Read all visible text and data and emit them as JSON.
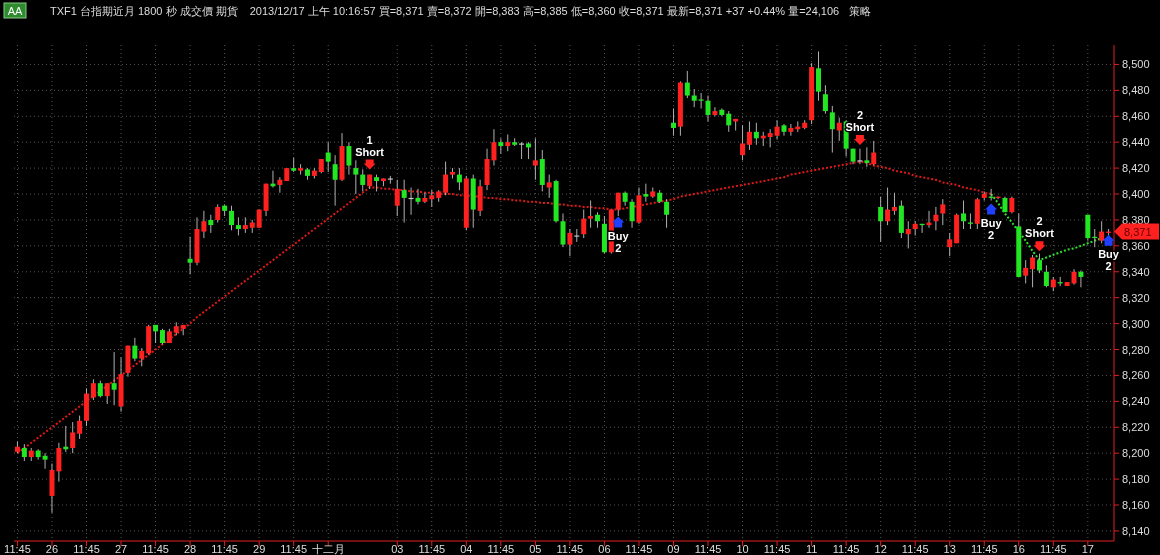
{
  "chart_data": {
    "type": "candlestick",
    "title": "TXF1  台指期近月  1800 秒  成交價  期貨",
    "subtitle": "2013/12/17  上午  10:16:57  買=8,371  賣=8,372  開=8,383  高=8,385  低=8,360  收=8,371  最新=8,371  +37  +0.44%  量=24,106",
    "categories": [
      "11:45",
      null,
      null,
      null,
      null,
      "26",
      null,
      null,
      null,
      null,
      "11:45",
      null,
      null,
      null,
      null,
      "27",
      null,
      null,
      null,
      null,
      "11:45",
      null,
      null,
      null,
      null,
      "28",
      null,
      null,
      null,
      null,
      "11:45",
      null,
      null,
      null,
      null,
      "29",
      null,
      null,
      null,
      null,
      "11:45",
      null,
      null,
      null,
      null,
      "十二月",
      null,
      null,
      null,
      null,
      null,
      null,
      null,
      null,
      null,
      "03",
      null,
      null,
      null,
      null,
      "11:45",
      null,
      null,
      null,
      null,
      "04",
      null,
      null,
      null,
      null,
      "11:45",
      null,
      null,
      null,
      null,
      "05",
      null,
      null,
      null,
      null,
      "11:45",
      null,
      null,
      null,
      null,
      "06",
      null,
      null,
      null,
      null,
      "11:45",
      null,
      null,
      null,
      null,
      "09",
      null,
      null,
      null,
      null,
      "11:45",
      null,
      null,
      null,
      null,
      "10",
      null,
      null,
      null,
      null,
      "11:45",
      null,
      null,
      null,
      null,
      "11",
      null,
      null,
      null,
      null,
      "11:45",
      null,
      null,
      null,
      null,
      "12",
      null,
      null,
      null,
      null,
      "11:45",
      null,
      null,
      null,
      null,
      "13",
      null,
      null,
      null,
      null,
      "11:45",
      null,
      null,
      null,
      null,
      "16",
      null,
      null,
      null,
      null,
      "11:45",
      null,
      null,
      null,
      null,
      "17",
      null,
      null,
      null
    ],
    "ohlc": [
      [
        8201,
        8209,
        8200,
        8205
      ],
      [
        8204,
        8207,
        8194,
        8197
      ],
      [
        8197,
        8204,
        8194,
        8202
      ],
      [
        8202,
        8203,
        8195,
        8197
      ],
      [
        8198,
        8200,
        8188,
        8195
      ],
      [
        8167,
        8192,
        8154,
        8187
      ],
      [
        8186,
        8208,
        8178,
        8204
      ],
      [
        8205,
        8221,
        8201,
        8203
      ],
      [
        8204,
        8224,
        8200,
        8216
      ],
      [
        8215,
        8229,
        8211,
        8225
      ],
      [
        8225,
        8250,
        8221,
        8246
      ],
      [
        8243,
        8257,
        8241,
        8254
      ],
      [
        8254,
        8256,
        8243,
        8244
      ],
      [
        8244,
        8254,
        8238,
        8254
      ],
      [
        8254,
        8278,
        8237,
        8249
      ],
      [
        8236,
        8274,
        8232,
        8261
      ],
      [
        8262,
        8283,
        8259,
        8283
      ],
      [
        8283,
        8289,
        8271,
        8273
      ],
      [
        8273,
        8281,
        8267,
        8279
      ],
      [
        8277,
        8299,
        8276,
        8298
      ],
      [
        8299,
        8299,
        8285,
        8294
      ],
      [
        8295,
        8296,
        8284,
        8285
      ],
      [
        8285,
        8296,
        8285,
        8294
      ],
      [
        8293,
        8301,
        8291,
        8298
      ],
      [
        8296,
        8299,
        8291,
        8299
      ],
      [
        8350,
        8367,
        8338,
        8347
      ],
      [
        8347,
        8382,
        8345,
        8373
      ],
      [
        8371,
        8387,
        8366,
        8379
      ],
      [
        8380,
        8384,
        8370,
        8376
      ],
      [
        8380,
        8392,
        8378,
        8390
      ],
      [
        8391,
        8392,
        8383,
        8387
      ],
      [
        8387,
        8391,
        8372,
        8376
      ],
      [
        8376,
        8382,
        8368,
        8373
      ],
      [
        8373,
        8382,
        8370,
        8376
      ],
      [
        8374,
        8380,
        8370,
        8378
      ],
      [
        8374,
        8388,
        8374,
        8388
      ],
      [
        8387,
        8408,
        8383,
        8408
      ],
      [
        8408,
        8418,
        8405,
        8406
      ],
      [
        8407,
        8413,
        8401,
        8411
      ],
      [
        8410,
        8420,
        8410,
        8420
      ],
      [
        8420,
        8428,
        8417,
        8418
      ],
      [
        8418,
        8423,
        8415,
        8420
      ],
      [
        8419,
        8420,
        8411,
        8414
      ],
      [
        8414,
        8420,
        8412,
        8418
      ],
      [
        8417,
        8427,
        8416,
        8427
      ],
      [
        8432,
        8440,
        8417,
        8425
      ],
      [
        8423,
        8430,
        8391,
        8411
      ],
      [
        8411,
        8447,
        8410,
        8437
      ],
      [
        8437,
        8440,
        8415,
        8422
      ],
      [
        8420,
        8426,
        8400,
        8415
      ],
      [
        8415,
        8419,
        8402,
        8407
      ],
      [
        8406,
        8415,
        8404,
        8415
      ],
      [
        8413,
        8415,
        8402,
        8410
      ],
      [
        8410,
        8412,
        8406,
        8412
      ],
      [
        8412,
        8414,
        8408,
        8412
      ],
      [
        8391,
        8411,
        8383,
        8404
      ],
      [
        8403,
        8411,
        8378,
        8397
      ],
      [
        8397,
        8405,
        8384,
        8397
      ],
      [
        8397,
        8404,
        8392,
        8394
      ],
      [
        8394,
        8401,
        8393,
        8397
      ],
      [
        8396,
        8403,
        8390,
        8399
      ],
      [
        8397,
        8403,
        8394,
        8402
      ],
      [
        8401,
        8425,
        8399,
        8415
      ],
      [
        8415,
        8420,
        8412,
        8417
      ],
      [
        8415,
        8420,
        8403,
        8409
      ],
      [
        8374,
        8414,
        8372,
        8412
      ],
      [
        8412,
        8415,
        8374,
        8388
      ],
      [
        8387,
        8411,
        8383,
        8406
      ],
      [
        8407,
        8435,
        8403,
        8427
      ],
      [
        8426,
        8450,
        8422,
        8440
      ],
      [
        8440,
        8443,
        8431,
        8437
      ],
      [
        8437,
        8446,
        8433,
        8440
      ],
      [
        8440,
        8443,
        8437,
        8438
      ],
      [
        8439,
        8440,
        8427,
        8439
      ],
      [
        8439,
        8440,
        8427,
        8436
      ],
      [
        8422,
        8443,
        8411,
        8426
      ],
      [
        8427,
        8434,
        8402,
        8407
      ],
      [
        8405,
        8415,
        8397,
        8409
      ],
      [
        8410,
        8411,
        8378,
        8379
      ],
      [
        8379,
        8385,
        8359,
        8361
      ],
      [
        8361,
        8373,
        8352,
        8370
      ],
      [
        8368,
        8373,
        8363,
        8368
      ],
      [
        8369,
        8388,
        8366,
        8381
      ],
      [
        8381,
        8395,
        8374,
        8383
      ],
      [
        8384,
        8386,
        8374,
        8379
      ],
      [
        8377,
        8383,
        8354,
        8355
      ],
      [
        8355,
        8388,
        8354,
        8388
      ],
      [
        8388,
        8401,
        8383,
        8401
      ],
      [
        8401,
        8402,
        8391,
        8394
      ],
      [
        8394,
        8396,
        8374,
        8379
      ],
      [
        8378,
        8405,
        8377,
        8399
      ],
      [
        8400,
        8408,
        8394,
        8398
      ],
      [
        8398,
        8405,
        8397,
        8402
      ],
      [
        8401,
        8403,
        8393,
        8394
      ],
      [
        8394,
        8396,
        8374,
        8384
      ],
      [
        8455,
        8466,
        8445,
        8451
      ],
      [
        8452,
        8487,
        8445,
        8486
      ],
      [
        8486,
        8495,
        8474,
        8476
      ],
      [
        8476,
        8481,
        8467,
        8472
      ],
      [
        8473,
        8478,
        8466,
        8472
      ],
      [
        8472,
        8476,
        8456,
        8461
      ],
      [
        8461,
        8467,
        8460,
        8464
      ],
      [
        8465,
        8466,
        8460,
        8461
      ],
      [
        8462,
        8464,
        8448,
        8453
      ],
      [
        8456,
        8458,
        8449,
        8458
      ],
      [
        8430,
        8453,
        8426,
        8439
      ],
      [
        8438,
        8456,
        8434,
        8448
      ],
      [
        8448,
        8455,
        8438,
        8443
      ],
      [
        8443,
        8448,
        8437,
        8445
      ],
      [
        8444,
        8450,
        8436,
        8447
      ],
      [
        8445,
        8457,
        8442,
        8452
      ],
      [
        8453,
        8454,
        8445,
        8448
      ],
      [
        8448,
        8454,
        8445,
        8451
      ],
      [
        8450,
        8456,
        8448,
        8452
      ],
      [
        8451,
        8457,
        8450,
        8455
      ],
      [
        8457,
        8501,
        8454,
        8498
      ],
      [
        8497,
        8510,
        8472,
        8479
      ],
      [
        8477,
        8484,
        8462,
        8464
      ],
      [
        8463,
        8468,
        8432,
        8450
      ],
      [
        8449,
        8459,
        8441,
        8455
      ],
      [
        8456,
        8457,
        8429,
        8435
      ],
      [
        8435,
        8435,
        8423,
        8425
      ],
      [
        8426,
        8435,
        8423,
        8426
      ],
      [
        8426,
        8436,
        8421,
        8424
      ],
      [
        8423,
        8441,
        8422,
        8432
      ],
      [
        8390,
        8398,
        8363,
        8379
      ],
      [
        8379,
        8405,
        8376,
        8388
      ],
      [
        8387,
        8401,
        8384,
        8390
      ],
      [
        8391,
        8395,
        8366,
        8370
      ],
      [
        8369,
        8379,
        8358,
        8373
      ],
      [
        8373,
        8379,
        8368,
        8377
      ],
      [
        8377,
        8377,
        8370,
        8376
      ],
      [
        8376,
        8387,
        8374,
        8378
      ],
      [
        8379,
        8390,
        8372,
        8384
      ],
      [
        8385,
        8396,
        8376,
        8392
      ],
      [
        8359,
        8370,
        8352,
        8365
      ],
      [
        8362,
        8385,
        8362,
        8384
      ],
      [
        8385,
        8395,
        8373,
        8379
      ],
      [
        8378,
        8385,
        8373,
        8377
      ],
      [
        8377,
        8397,
        8373,
        8396
      ],
      [
        8397,
        8402,
        8395,
        8400
      ],
      [
        8398,
        8404,
        8395,
        8397
      ],
      [
        8397,
        8398,
        8396,
        8398
      ],
      [
        8397,
        8398,
        8386,
        8386
      ],
      [
        8386,
        8398,
        8385,
        8397
      ],
      [
        8375,
        8385,
        8336,
        8336
      ],
      [
        8337,
        8349,
        8331,
        8343
      ],
      [
        8342,
        8353,
        8328,
        8351
      ],
      [
        8349,
        8354,
        8339,
        8341
      ],
      [
        8340,
        8345,
        8328,
        8329
      ],
      [
        8328,
        8336,
        8325,
        8334
      ],
      [
        8332,
        8336,
        8329,
        8331
      ],
      [
        8329,
        8332,
        8329,
        8332
      ],
      [
        8331,
        8342,
        8330,
        8340
      ],
      [
        8340,
        8341,
        8328,
        8336
      ],
      [
        8384,
        8384,
        8364,
        8366
      ],
      [
        8367,
        8373,
        8359,
        8366
      ],
      [
        8364,
        8379,
        8362,
        8371
      ],
      [
        8370,
        8373,
        8368,
        8371
      ]
    ],
    "colors": [
      "#ff2020",
      "#22e622",
      "#ff2020",
      "#22e622",
      "#22e622",
      "#ff2020",
      "#ff2020",
      "#22e622",
      "#ff2020",
      "#ff2020",
      "#ff2020",
      "#ff2020",
      "#22e622",
      "#ff2020",
      "#22e622",
      "#ff2020",
      "#ff2020",
      "#22e622",
      "#ff2020",
      "#ff2020",
      "#22e622",
      "#22e622",
      "#ff2020",
      "#ff2020",
      "#ff2020",
      "#22e622",
      "#ff2020",
      "#ff2020",
      "#22e622",
      "#ff2020",
      "#22e622",
      "#22e622",
      "#22e622",
      "#ff2020",
      "#ff2020",
      "#ff2020",
      "#ff2020",
      "#22e622",
      "#ff2020",
      "#ff2020",
      "#22e622",
      "#ff2020",
      "#22e622",
      "#ff2020",
      "#ff2020",
      "#22e622",
      "#22e622",
      "#ff2020",
      "#22e622",
      "#22e622",
      "#22e622",
      "#ff2020",
      "#22e622",
      "#ff2020",
      "#c8c8c8",
      "#ff2020",
      "#22e622",
      "#c8c8c8",
      "#22e622",
      "#ff2020",
      "#ff2020",
      "#ff2020",
      "#ff2020",
      "#ff2020",
      "#22e622",
      "#ff2020",
      "#22e622",
      "#ff2020",
      "#ff2020",
      "#ff2020",
      "#22e622",
      "#ff2020",
      "#22e622",
      "#c8c8c8",
      "#22e622",
      "#ff2020",
      "#22e622",
      "#ff2020",
      "#22e622",
      "#22e622",
      "#ff2020",
      "#c8c8c8",
      "#ff2020",
      "#ff2020",
      "#22e622",
      "#22e622",
      "#ff2020",
      "#ff2020",
      "#22e622",
      "#22e622",
      "#ff2020",
      "#22e622",
      "#ff2020",
      "#22e622",
      "#22e622",
      "#22e622",
      "#ff2020",
      "#22e622",
      "#22e622",
      "#22e622",
      "#22e622",
      "#ff2020",
      "#22e622",
      "#22e622",
      "#ff2020",
      "#ff2020",
      "#ff2020",
      "#22e622",
      "#ff2020",
      "#ff2020",
      "#ff2020",
      "#22e622",
      "#ff2020",
      "#ff2020",
      "#ff2020",
      "#ff2020",
      "#22e622",
      "#22e622",
      "#22e622",
      "#ff2020",
      "#22e622",
      "#22e622",
      "#c8c8c8",
      "#22e622",
      "#ff2020",
      "#22e622",
      "#ff2020",
      "#ff2020",
      "#22e622",
      "#ff2020",
      "#ff2020",
      "#22e622",
      "#ff2020",
      "#ff2020",
      "#ff2020",
      "#ff2020",
      "#ff2020",
      "#22e622",
      "#22e622",
      "#ff2020",
      "#ff2020",
      "#22e622",
      "#ff2020",
      "#22e622",
      "#ff2020",
      "#22e622",
      "#ff2020",
      "#ff2020",
      "#22e622",
      "#22e622",
      "#ff2020",
      "#22e622",
      "#ff2020",
      "#ff2020",
      "#22e622",
      "#22e622",
      "#22e622",
      "#ff2020",
      "#ff2020"
    ],
    "series": [
      {
        "type": "line",
        "color": "#e01818",
        "line_style": "dotted",
        "values": [
          8200,
          8204,
          8208,
          8212,
          8216,
          8220,
          8224,
          8228,
          8232,
          8236,
          8240,
          8244,
          8248,
          8252,
          8256,
          8260,
          8264,
          8268,
          8272,
          8276,
          8280,
          8284,
          8288,
          8292,
          8296,
          8300,
          8305,
          8309,
          8313,
          8317,
          8321,
          8325,
          8329,
          8333,
          8337,
          8341,
          8345,
          8349,
          8353,
          8357,
          8361,
          8365,
          8369,
          8373,
          8377,
          8381,
          8385,
          8389,
          8393,
          8397,
          8401,
          8405,
          8405,
          8404,
          8404,
          8403,
          8403,
          8402,
          8402,
          8401,
          8401,
          8400,
          8400,
          8400,
          8399,
          8399,
          8398,
          8398,
          8397,
          8397,
          8396,
          8396,
          8395,
          8395,
          8394,
          8394,
          8393,
          8393,
          8392,
          8392,
          8391,
          8391,
          8390,
          8390,
          8389,
          8389,
          8388,
          8388,
          8389,
          8390,
          8391,
          8392,
          8393,
          8394,
          8395,
          8396,
          8398,
          8399,
          8400,
          8401,
          8402,
          8403,
          8404,
          8405,
          8406,
          8407,
          8408,
          8409,
          8410,
          8411,
          8412,
          8413,
          8415,
          8416,
          8417,
          8418,
          8419,
          8420,
          8421,
          8422,
          8423,
          8424,
          8425,
          8424,
          8422,
          8421,
          8420,
          8418,
          8417,
          8416,
          8414,
          8413,
          8412,
          8411,
          8409,
          8408,
          8407,
          8405,
          8404,
          8403,
          8401,
          8400,
          null,
          null,
          null,
          null,
          null,
          null,
          null,
          null,
          null,
          null,
          null,
          null,
          null,
          null,
          null,
          null,
          null
        ]
      },
      {
        "type": "line",
        "color": "#30e030",
        "line_style": "dotted",
        "values": [
          null,
          null,
          null,
          null,
          null,
          null,
          null,
          null,
          null,
          null,
          null,
          null,
          null,
          null,
          null,
          null,
          null,
          null,
          null,
          null,
          null,
          null,
          null,
          null,
          null,
          null,
          null,
          null,
          null,
          null,
          null,
          null,
          null,
          null,
          null,
          null,
          null,
          null,
          null,
          null,
          null,
          null,
          null,
          null,
          null,
          null,
          null,
          null,
          null,
          null,
          null,
          null,
          null,
          null,
          null,
          null,
          null,
          null,
          null,
          null,
          null,
          null,
          null,
          null,
          null,
          null,
          null,
          null,
          null,
          null,
          null,
          null,
          null,
          null,
          null,
          null,
          null,
          null,
          null,
          null,
          null,
          null,
          null,
          null,
          null,
          null,
          null,
          null,
          null,
          null,
          null,
          null,
          null,
          null,
          null,
          null,
          null,
          null,
          null,
          null,
          null,
          null,
          null,
          null,
          null,
          null,
          null,
          null,
          null,
          null,
          null,
          null,
          null,
          null,
          null,
          null,
          null,
          null,
          null,
          null,
          null,
          null,
          null,
          null,
          null,
          null,
          null,
          null,
          null,
          null,
          null,
          null,
          null,
          null,
          null,
          null,
          null,
          null,
          null,
          null,
          null,
          8400,
          8393,
          8385,
          8378,
          8371,
          8364,
          8356,
          8349,
          8351,
          8353,
          8355,
          8357,
          8358,
          8360,
          8362,
          8364,
          8366,
          null
        ]
      },
      {
        "type": "scatter",
        "color": "#ff2020",
        "marker": "triangle",
        "values": [
          null,
          null,
          null,
          null,
          null,
          null,
          null,
          null,
          null,
          null,
          null,
          null,
          null,
          null,
          null,
          null,
          null,
          null,
          null,
          null,
          null,
          null,
          null,
          null,
          null,
          null,
          null,
          null,
          null,
          null,
          null,
          null,
          null,
          null,
          null,
          null,
          null,
          null,
          null,
          null,
          null,
          null,
          null,
          null,
          null,
          null,
          null,
          null,
          null,
          null,
          null,
          8422,
          null,
          null,
          null,
          null,
          null,
          null,
          null,
          null,
          null,
          null,
          null,
          null,
          null,
          null,
          null,
          null,
          null,
          null,
          null,
          null,
          null,
          null,
          null,
          null,
          null,
          null,
          null,
          null,
          null,
          null,
          null,
          null,
          null,
          null,
          null,
          null,
          null,
          null,
          null,
          null,
          null,
          null,
          null,
          null,
          null,
          null,
          null,
          null,
          null,
          null,
          null,
          null,
          null,
          null,
          null,
          null,
          null,
          null,
          null,
          null,
          null,
          null,
          null,
          null,
          null,
          null,
          null,
          null,
          null,
          null,
          8441,
          null,
          null,
          null,
          null,
          null,
          null,
          null,
          null,
          null,
          null,
          null,
          null,
          null,
          null,
          null,
          null,
          null,
          null,
          null,
          null,
          null,
          null,
          null,
          null,
          null,
          8359,
          null,
          null,
          null,
          null,
          null,
          null,
          null,
          null,
          null,
          null
        ]
      },
      {
        "type": "scatter",
        "color": "#2040ff",
        "marker": "triangle",
        "values": [
          null,
          null,
          null,
          null,
          null,
          null,
          null,
          null,
          null,
          null,
          null,
          null,
          null,
          null,
          null,
          null,
          null,
          null,
          null,
          null,
          null,
          null,
          null,
          null,
          null,
          null,
          null,
          null,
          null,
          null,
          null,
          null,
          null,
          null,
          null,
          null,
          null,
          null,
          null,
          null,
          null,
          null,
          null,
          null,
          null,
          null,
          null,
          null,
          null,
          null,
          null,
          null,
          null,
          null,
          null,
          null,
          null,
          null,
          null,
          null,
          null,
          null,
          null,
          null,
          null,
          null,
          null,
          null,
          null,
          null,
          null,
          null,
          null,
          null,
          null,
          null,
          null,
          null,
          null,
          null,
          null,
          null,
          null,
          null,
          null,
          null,
          null,
          8378,
          null,
          null,
          null,
          null,
          null,
          null,
          null,
          null,
          null,
          null,
          null,
          null,
          null,
          null,
          null,
          null,
          null,
          null,
          null,
          null,
          null,
          null,
          null,
          null,
          null,
          null,
          null,
          null,
          null,
          null,
          null,
          null,
          null,
          null,
          null,
          null,
          null,
          null,
          null,
          null,
          null,
          null,
          null,
          null,
          null,
          null,
          null,
          null,
          null,
          null,
          null,
          null,
          null,
          8388,
          null,
          null,
          null,
          null,
          null,
          null,
          null,
          null,
          null,
          null,
          null,
          null,
          null,
          null,
          null,
          null,
          8364
        ]
      }
    ],
    "annotations": [
      "AA",
      "策略",
      "1\nShort",
      "Buy\n2",
      "2\nShort",
      "Buy\n2",
      "2\nShort",
      "Buy\n2",
      "8,371"
    ],
    "ylim": [
      8133,
      8515
    ],
    "yticks": [
      {
        "value": 8140,
        "label": "8,140"
      },
      {
        "value": 8160,
        "label": "8,160"
      },
      {
        "value": 8180,
        "label": "8,180"
      },
      {
        "value": 8200,
        "label": "8,200"
      },
      {
        "value": 8220,
        "label": "8,220"
      },
      {
        "value": 8240,
        "label": "8,240"
      },
      {
        "value": 8260,
        "label": "8,260"
      },
      {
        "value": 8280,
        "label": "8,280"
      },
      {
        "value": 8300,
        "label": "8,300"
      },
      {
        "value": 8320,
        "label": "8,320"
      },
      {
        "value": 8340,
        "label": "8,340"
      },
      {
        "value": 8360,
        "label": "8,360"
      },
      {
        "value": 8380,
        "label": "8,380"
      },
      {
        "value": 8400,
        "label": "8,400"
      },
      {
        "value": 8420,
        "label": "8,420"
      },
      {
        "value": 8440,
        "label": "8,440"
      },
      {
        "value": 8460,
        "label": "8,460"
      },
      {
        "value": 8480,
        "label": "8,480"
      },
      {
        "value": 8500,
        "label": "8,500"
      }
    ],
    "grid": true
  }
}
